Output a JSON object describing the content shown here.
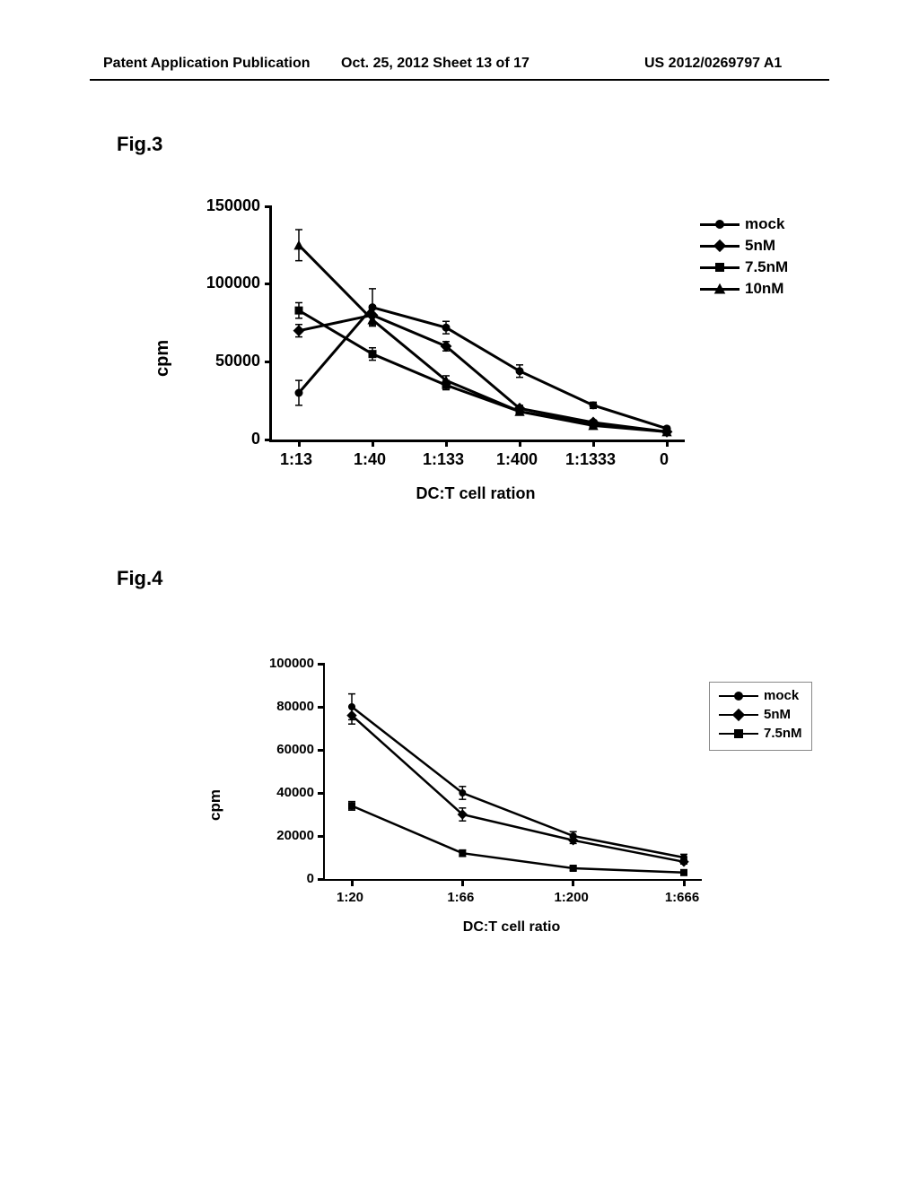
{
  "header": {
    "left": "Patent Application Publication",
    "mid": "Oct. 25, 2012  Sheet 13 of 17",
    "right": "US 2012/0269797 A1"
  },
  "fig3": {
    "label": "Fig.3",
    "ylabel": "cpm",
    "xlabel": "DC:T cell ration",
    "ylim": [
      0,
      150000
    ],
    "yticks": [
      0,
      50000,
      100000,
      150000
    ],
    "xcats": [
      "1:13",
      "1:40",
      "1:133",
      "1:400",
      "1:1333",
      "0"
    ],
    "legend": [
      {
        "label": "mock",
        "marker": "circle"
      },
      {
        "label": "5nM",
        "marker": "diamond"
      },
      {
        "label": "7.5nM",
        "marker": "square"
      },
      {
        "label": "10nM",
        "marker": "triangle"
      }
    ],
    "series": {
      "mock": {
        "marker": "circle",
        "y": [
          30000,
          85000,
          72000,
          44000,
          22000,
          7000
        ],
        "err": [
          8000,
          12000,
          4000,
          4000,
          2000,
          1000
        ]
      },
      "5nM": {
        "marker": "diamond",
        "y": [
          70000,
          80000,
          60000,
          20000,
          11000,
          5000
        ],
        "err": [
          4000,
          6000,
          3000,
          2000,
          1500,
          1000
        ]
      },
      "7.5nM": {
        "marker": "square",
        "y": [
          83000,
          55000,
          35000,
          18000,
          10000,
          5000
        ],
        "err": [
          5000,
          4000,
          3000,
          2000,
          1500,
          1000
        ]
      },
      "10nM": {
        "marker": "triangle",
        "y": [
          125000,
          77000,
          38000,
          18000,
          9000,
          5000
        ],
        "err": [
          10000,
          4000,
          3000,
          2000,
          1500,
          1000
        ]
      }
    },
    "line_color": "#000000",
    "line_width": 3,
    "marker_size": 9
  },
  "fig4": {
    "label": "Fig.4",
    "ylabel": "cpm",
    "xlabel": "DC:T cell ratio",
    "ylim": [
      0,
      100000
    ],
    "yticks": [
      0,
      20000,
      40000,
      60000,
      80000,
      100000
    ],
    "xcats": [
      "1:20",
      "1:66",
      "1:200",
      "1:666"
    ],
    "legend": [
      {
        "label": "mock",
        "marker": "circle"
      },
      {
        "label": "5nM",
        "marker": "diamond"
      },
      {
        "label": "7.5nM",
        "marker": "square"
      }
    ],
    "series": {
      "mock": {
        "marker": "circle",
        "y": [
          80000,
          40000,
          20000,
          10000
        ],
        "err": [
          6000,
          3000,
          2000,
          1500
        ]
      },
      "5nM": {
        "marker": "diamond",
        "y": [
          76000,
          30000,
          18000,
          8000
        ],
        "err": [
          4000,
          3000,
          1500,
          1000
        ]
      },
      "7.5nM": {
        "marker": "square",
        "y": [
          34000,
          12000,
          5000,
          3000
        ],
        "err": [
          2000,
          1500,
          1000,
          800
        ]
      }
    },
    "line_color": "#000000",
    "line_width": 2.5,
    "marker_size": 8
  }
}
